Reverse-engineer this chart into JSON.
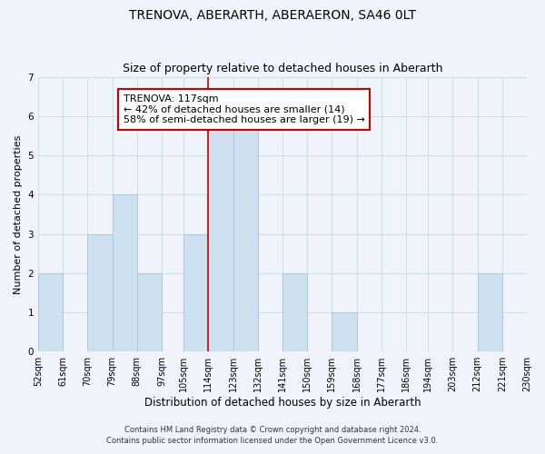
{
  "title": "TRENOVA, ABERARTH, ABERAERON, SA46 0LT",
  "subtitle": "Size of property relative to detached houses in Aberarth",
  "xlabel": "Distribution of detached houses by size in Aberarth",
  "ylabel": "Number of detached properties",
  "bin_edges": [
    52,
    61,
    70,
    79,
    88,
    97,
    105,
    114,
    123,
    132,
    141,
    150,
    159,
    168,
    177,
    186,
    194,
    203,
    212,
    221,
    230
  ],
  "bar_heights": [
    2,
    0,
    3,
    4,
    2,
    0,
    3,
    6,
    6,
    0,
    2,
    0,
    1,
    0,
    0,
    0,
    0,
    0,
    2,
    0
  ],
  "bar_color": "#cce0f0",
  "bar_edgecolor": "#aac8e0",
  "vline_x": 114,
  "vline_color": "#cc0000",
  "ylim": [
    0,
    7
  ],
  "yticks": [
    0,
    1,
    2,
    3,
    4,
    5,
    6,
    7
  ],
  "annotation_text": "TRENOVA: 117sqm\n← 42% of detached houses are smaller (14)\n58% of semi-detached houses are larger (19) →",
  "annotation_box_edgecolor": "#cc0000",
  "annotation_box_facecolor": "#ffffff",
  "footnote1": "Contains HM Land Registry data © Crown copyright and database right 2024.",
  "footnote2": "Contains public sector information licensed under the Open Government Licence v3.0.",
  "background_color": "#f0f4fa",
  "grid_color": "#d0dce8",
  "title_fontsize": 10,
  "subtitle_fontsize": 9,
  "tick_label_fontsize": 7,
  "ylabel_fontsize": 8,
  "xlabel_fontsize": 8.5,
  "annotation_fontsize": 8,
  "footnote_fontsize": 6
}
